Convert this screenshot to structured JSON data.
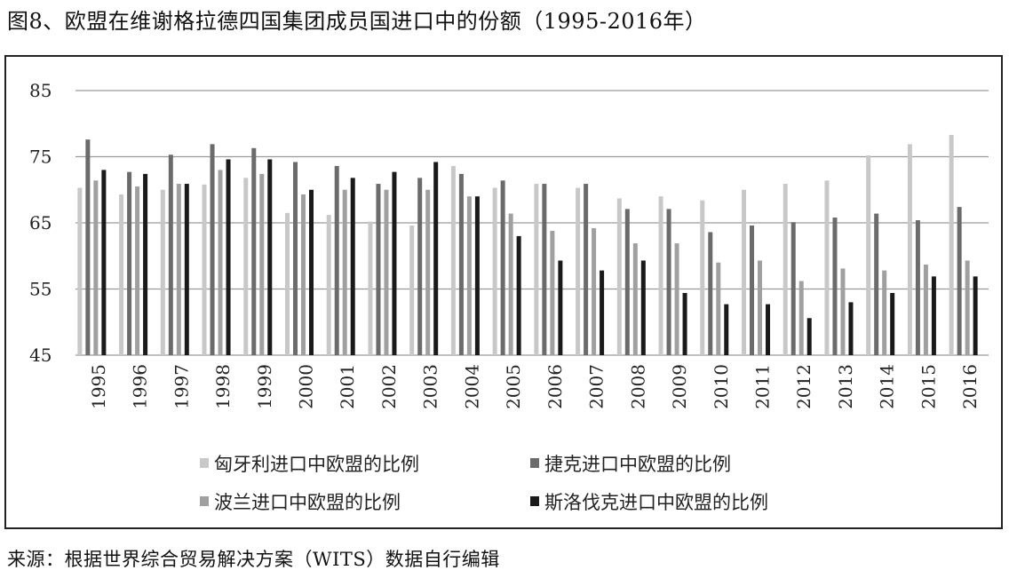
{
  "title": "图8、欧盟在维谢格拉德四国集团成员国进口中的份额（1995-2016年）",
  "source": "来源：根据世界综合贸易解决方案（WITS）数据自行编辑",
  "chart_data": {
    "type": "bar",
    "ylim": [
      45,
      85
    ],
    "yticks": [
      "45",
      "55",
      "65",
      "75",
      "85"
    ],
    "grid": true,
    "legend_position": "bottom",
    "categories": [
      "1995",
      "1996",
      "1997",
      "1998",
      "1999",
      "2000",
      "2001",
      "2002",
      "2003",
      "2004",
      "2005",
      "2006",
      "2007",
      "2008",
      "2009",
      "2010",
      "2011",
      "2012",
      "2013",
      "2014",
      "2015",
      "2016"
    ],
    "series": [
      {
        "name": "匈牙利进口中欧盟的比例",
        "color": "#c8c8c8",
        "values": [
          70.3,
          69.3,
          70.0,
          70.8,
          71.8,
          66.5,
          66.2,
          65.2,
          64.6,
          73.6,
          70.3,
          70.9,
          70.3,
          68.7,
          69.0,
          68.4,
          70.0,
          70.9,
          71.4,
          75.2,
          76.9,
          78.3
        ]
      },
      {
        "name": "捷克进口中欧盟的比例",
        "color": "#6b6b6b",
        "values": [
          77.6,
          72.7,
          75.3,
          76.9,
          76.3,
          74.2,
          73.6,
          70.9,
          71.8,
          72.4,
          71.4,
          70.9,
          70.9,
          67.1,
          67.1,
          63.6,
          64.6,
          65.1,
          65.8,
          66.4,
          65.4,
          67.4
        ]
      },
      {
        "name": "波兰进口中欧盟的比例",
        "color": "#a0a0a0",
        "values": [
          71.4,
          70.5,
          70.9,
          73.0,
          72.4,
          69.3,
          70.0,
          70.0,
          70.0,
          69.0,
          66.4,
          63.8,
          64.2,
          61.9,
          61.9,
          59.0,
          59.3,
          56.2,
          58.1,
          57.8,
          58.7,
          59.3
        ]
      },
      {
        "name": "斯洛伐克进口中欧盟的比例",
        "color": "#1a1a1a",
        "values": [
          73.0,
          72.4,
          70.9,
          74.6,
          74.6,
          70.0,
          71.8,
          72.7,
          74.2,
          69.0,
          63.0,
          59.3,
          57.8,
          59.3,
          54.4,
          52.7,
          52.7,
          50.6,
          53.0,
          54.4,
          56.9,
          56.9
        ]
      }
    ]
  }
}
